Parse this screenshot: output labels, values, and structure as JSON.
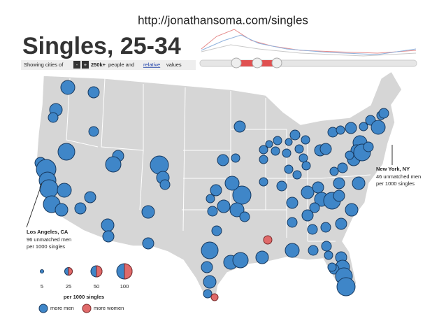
{
  "header": {
    "url": "http://jonathansoma.com/singles",
    "title": "Singles, 25-34",
    "controls": {
      "prefix": "Showing cities of",
      "minus": "-",
      "plus": "+",
      "size": "250k+",
      "middle": "people and",
      "link": "relative",
      "suffix": "values"
    }
  },
  "annotations": [
    {
      "title": "New York, NY",
      "line1": "46 unmatched men",
      "line2": "per 1000 singles"
    },
    {
      "title": "Los Angeles, CA",
      "line1": "96 unmatched men",
      "line2": "per 1000 singles"
    }
  ],
  "legend": {
    "sizes": [
      "5",
      "25",
      "50",
      "100"
    ],
    "unit": "per 1000 singles",
    "colors": [
      "more men",
      "more women"
    ]
  }
}
